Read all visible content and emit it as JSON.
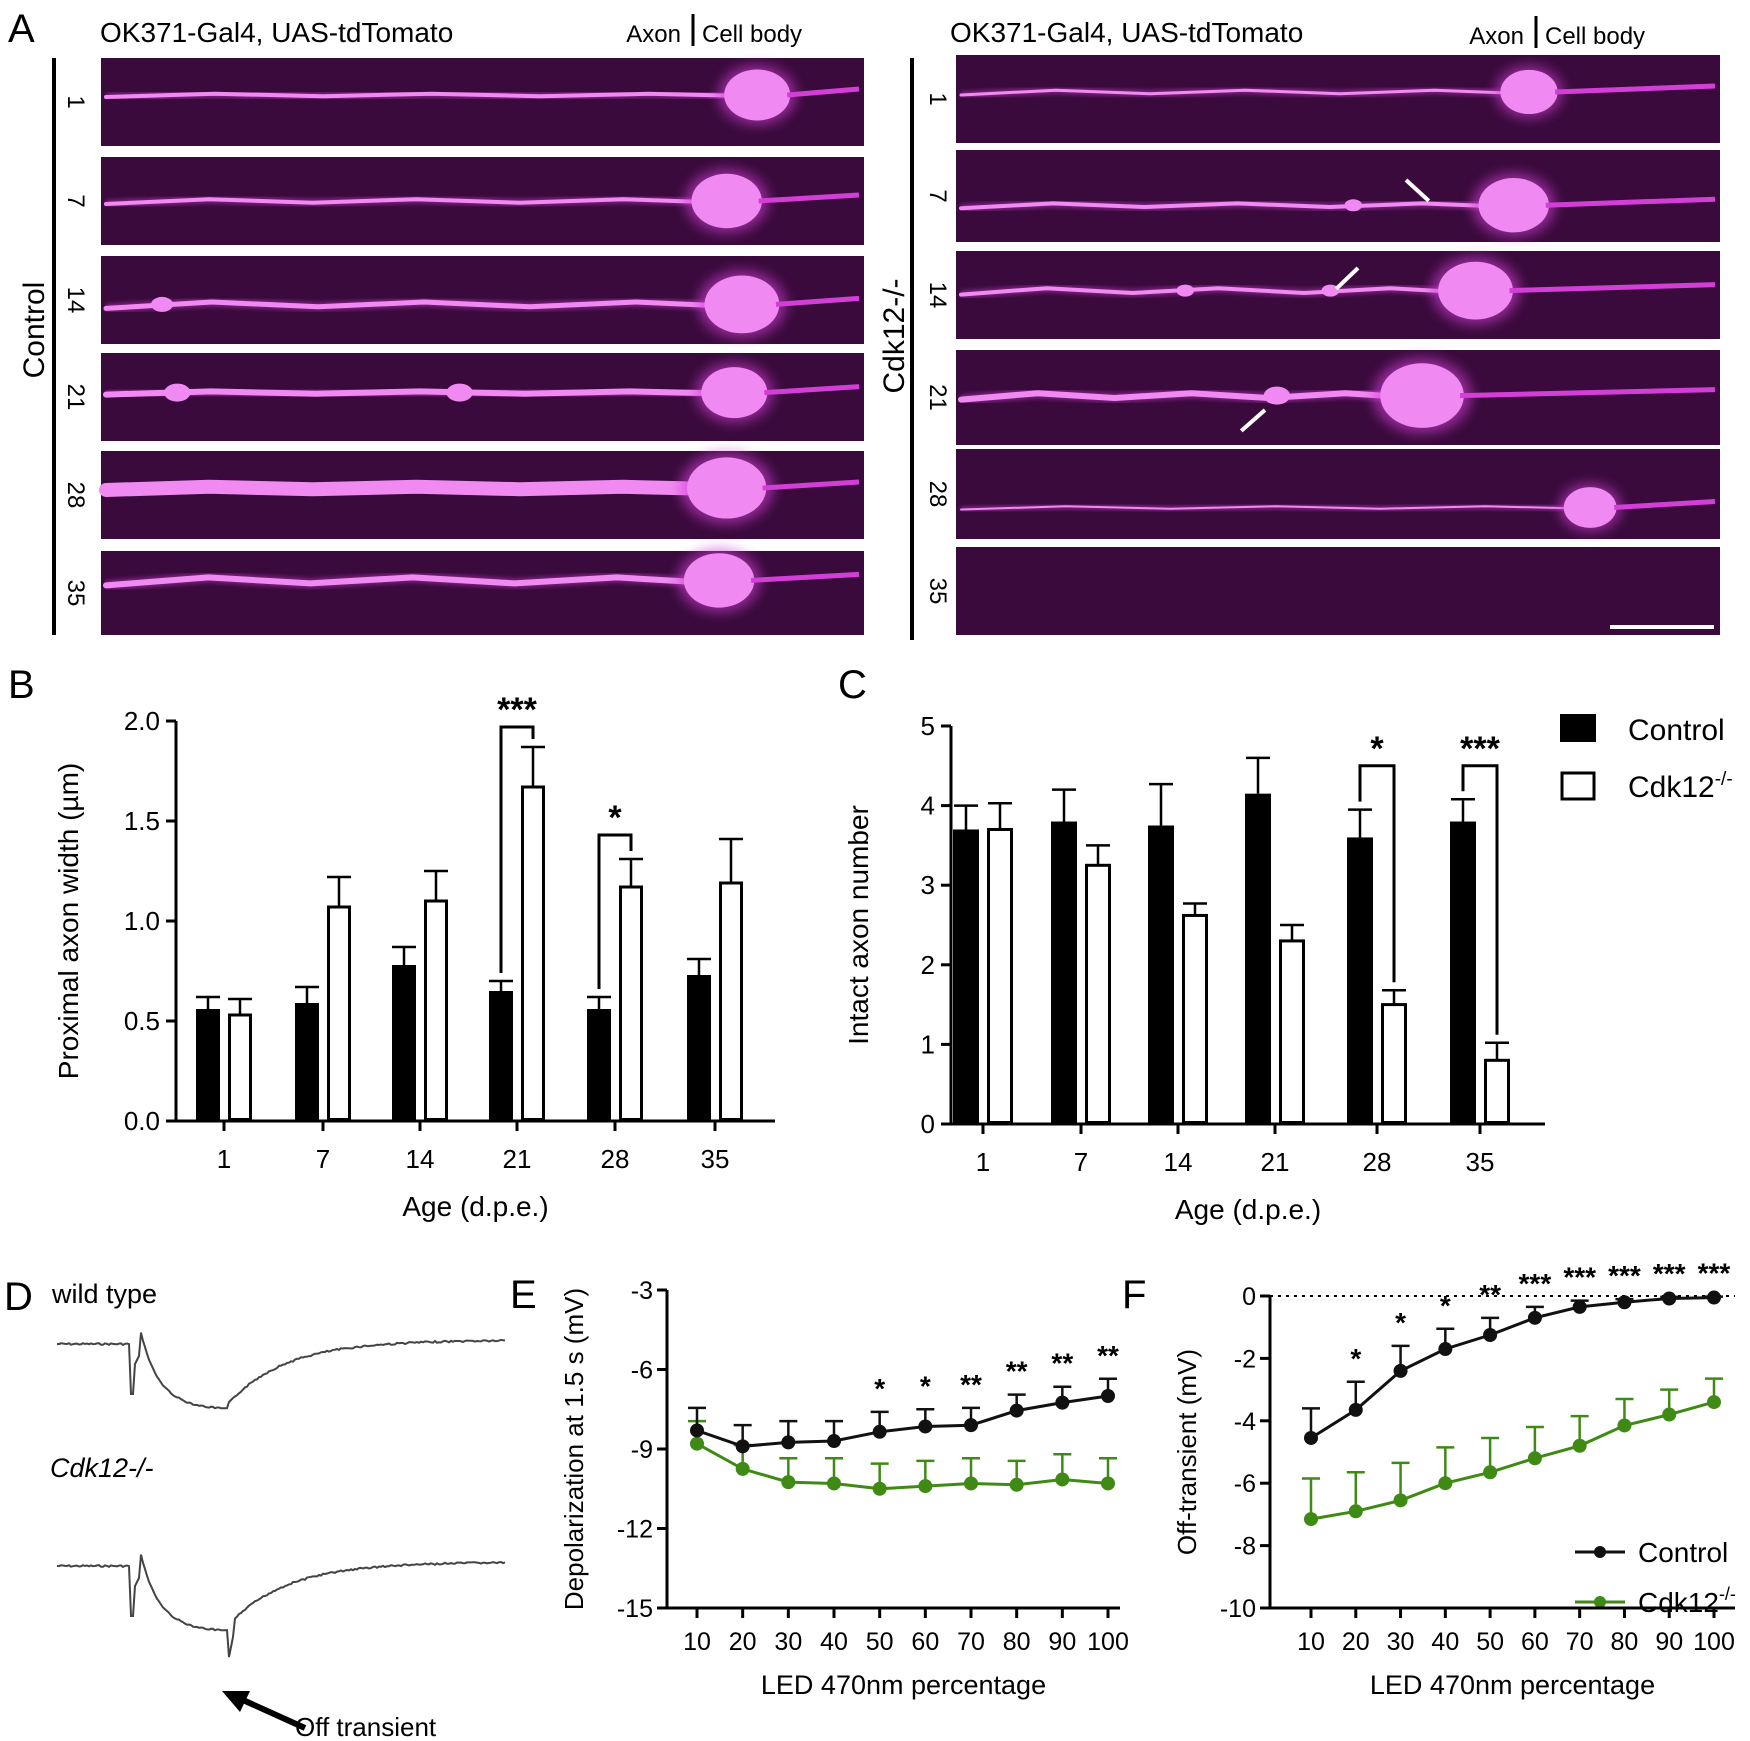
{
  "panelA": {
    "label": "A",
    "left": {
      "header": "OK371-Gal4, UAS-tdTomato",
      "axon_label": "Axon",
      "cellbody_label": "Cell body",
      "group_label": "Control",
      "rows": [
        "1",
        "7",
        "14",
        "21",
        "28",
        "35"
      ]
    },
    "right": {
      "header": "OK371-Gal4, UAS-tdTomato",
      "axon_label": "Axon",
      "cellbody_label": "Cell body",
      "group_label": "Cdk12-/-",
      "rows": [
        "1",
        "7",
        "14",
        "21",
        "28",
        "35"
      ]
    },
    "colors": {
      "tissue_dark": "#3a0a3c",
      "signal": "#d23fd6",
      "signal_bright": "#f08af2"
    }
  },
  "panelD": {
    "label": "D",
    "trace1_label": "wild type",
    "trace2_label": "Cdk12-/-",
    "annotation": "Off transient"
  },
  "legend": {
    "control": "Control",
    "mutant_base": "Cdk12",
    "mutant_sup": "-/-"
  },
  "chart_data": [
    {
      "panel": "B",
      "type": "bar",
      "title": "",
      "xlabel": "Age (d.p.e.)",
      "ylabel": "Proximal axon width (µm)",
      "categories": [
        "1",
        "7",
        "14",
        "21",
        "28",
        "35"
      ],
      "ylim": [
        0,
        2.0
      ],
      "yticks": [
        0.0,
        0.5,
        1.0,
        1.5,
        2.0
      ],
      "ytick_labels": [
        "0.0",
        "0.5",
        "1.0",
        "1.5",
        "2.0"
      ],
      "series": [
        {
          "name": "Control",
          "color": "#000000",
          "fill": "solid",
          "values": [
            0.56,
            0.59,
            0.78,
            0.65,
            0.56,
            0.73
          ],
          "errors": [
            0.06,
            0.08,
            0.09,
            0.05,
            0.06,
            0.08
          ]
        },
        {
          "name": "Cdk12-/-",
          "color": "#000000",
          "fill": "open",
          "values": [
            0.53,
            1.07,
            1.1,
            1.67,
            1.17,
            1.19
          ],
          "errors": [
            0.08,
            0.15,
            0.15,
            0.2,
            0.14,
            0.22
          ]
        }
      ],
      "significance": [
        {
          "category_index": 3,
          "label": "***",
          "level": 1.97
        },
        {
          "category_index": 4,
          "label": "*",
          "level": 1.43
        }
      ]
    },
    {
      "panel": "C",
      "type": "bar",
      "title": "",
      "xlabel": "Age (d.p.e.)",
      "ylabel": "Intact axon number",
      "categories": [
        "1",
        "7",
        "14",
        "21",
        "28",
        "35"
      ],
      "ylim": [
        0,
        5
      ],
      "yticks": [
        0,
        1,
        2,
        3,
        4,
        5
      ],
      "ytick_labels": [
        "0",
        "1",
        "2",
        "3",
        "4",
        "5"
      ],
      "series": [
        {
          "name": "Control",
          "color": "#000000",
          "fill": "solid",
          "values": [
            3.7,
            3.8,
            3.75,
            4.15,
            3.6,
            3.8
          ],
          "errors": [
            0.3,
            0.4,
            0.52,
            0.45,
            0.35,
            0.28
          ]
        },
        {
          "name": "Cdk12-/-",
          "color": "#000000",
          "fill": "open",
          "values": [
            3.7,
            3.25,
            2.62,
            2.3,
            1.5,
            0.8
          ],
          "errors": [
            0.33,
            0.25,
            0.15,
            0.2,
            0.18,
            0.22
          ]
        }
      ],
      "significance": [
        {
          "category_index": 4,
          "label": "*",
          "level": 4.5
        },
        {
          "category_index": 5,
          "label": "***",
          "level": 4.5
        }
      ]
    },
    {
      "panel": "E",
      "type": "line",
      "title": "",
      "xlabel": "LED 470nm percentage",
      "ylabel": "Depolarization at 1.5 s (mV)",
      "x": [
        10,
        20,
        30,
        40,
        50,
        60,
        70,
        80,
        90,
        100
      ],
      "ylim": [
        -15,
        -3
      ],
      "yticks": [
        -15,
        -12,
        -9,
        -6,
        -3
      ],
      "ytick_labels": [
        "-15",
        "-12",
        "-9",
        "-6",
        "-3"
      ],
      "series": [
        {
          "name": "Control",
          "color": "#111111",
          "values": [
            -8.3,
            -8.9,
            -8.75,
            -8.7,
            -8.35,
            -8.15,
            -8.1,
            -7.55,
            -7.25,
            -7.0
          ],
          "errors": [
            0.85,
            0.8,
            0.8,
            0.75,
            0.75,
            0.65,
            0.65,
            0.6,
            0.6,
            0.65
          ]
        },
        {
          "name": "Cdk12-/-",
          "color": "#3f8a14",
          "values": [
            -8.8,
            -9.75,
            -10.25,
            -10.3,
            -10.5,
            -10.4,
            -10.3,
            -10.35,
            -10.15,
            -10.3
          ],
          "errors": [
            0.85,
            0.9,
            0.9,
            0.95,
            0.95,
            0.95,
            0.95,
            0.9,
            0.95,
            0.95
          ]
        }
      ],
      "significance_labels": [
        "",
        "",
        "",
        "",
        "*",
        "*",
        "**",
        "**",
        "**",
        "**"
      ]
    },
    {
      "panel": "F",
      "type": "line",
      "title": "",
      "xlabel": "LED 470nm percentage",
      "ylabel": "Off-transient (mV)",
      "x": [
        10,
        20,
        30,
        40,
        50,
        60,
        70,
        80,
        90,
        100
      ],
      "ylim": [
        -10,
        0
      ],
      "yticks": [
        -10,
        -8,
        -6,
        -4,
        -2,
        0
      ],
      "ytick_labels": [
        "-10",
        "-8",
        "-6",
        "-4",
        "-2",
        "0"
      ],
      "series": [
        {
          "name": "Control",
          "color": "#111111",
          "values": [
            -4.55,
            -3.65,
            -2.4,
            -1.7,
            -1.25,
            -0.7,
            -0.35,
            -0.2,
            -0.08,
            -0.05
          ],
          "errors": [
            0.95,
            0.9,
            0.8,
            0.65,
            0.55,
            0.35,
            0.2,
            0.1,
            0.05,
            0.03
          ]
        },
        {
          "name": "Cdk12-/-",
          "color": "#3f8a14",
          "values": [
            -7.15,
            -6.9,
            -6.55,
            -6.0,
            -5.65,
            -5.2,
            -4.8,
            -4.15,
            -3.8,
            -3.4
          ],
          "errors": [
            1.3,
            1.25,
            1.2,
            1.15,
            1.1,
            1.0,
            0.95,
            0.85,
            0.8,
            0.75
          ]
        }
      ],
      "significance_labels": [
        "",
        "*",
        "*",
        "*",
        "**",
        "***",
        "***",
        "***",
        "***",
        "***"
      ]
    }
  ]
}
